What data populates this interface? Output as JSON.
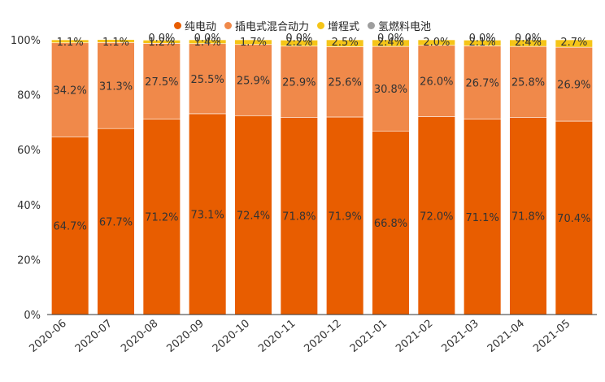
{
  "chart_data": {
    "type": "bar",
    "stacked": true,
    "categories": [
      "2020-06",
      "2020-07",
      "2020-08",
      "2020-09",
      "2020-10",
      "2020-11",
      "2020-12",
      "2021-01",
      "2021-02",
      "2021-03",
      "2021-04",
      "2021-05"
    ],
    "series": [
      {
        "name": "纯电动",
        "color": "#e85d00",
        "values": [
          64.7,
          67.7,
          71.2,
          73.1,
          72.4,
          71.8,
          71.9,
          66.8,
          72.0,
          71.1,
          71.8,
          70.4
        ]
      },
      {
        "name": "插电式混合动力",
        "color": "#f0894a",
        "values": [
          34.2,
          31.3,
          27.5,
          25.5,
          25.9,
          25.9,
          25.6,
          30.8,
          26.0,
          26.7,
          25.8,
          26.9
        ]
      },
      {
        "name": "增程式",
        "color": "#f5c518",
        "values": [
          1.1,
          1.1,
          1.2,
          1.4,
          1.7,
          2.2,
          2.5,
          2.4,
          2.0,
          2.1,
          2.4,
          2.7
        ]
      },
      {
        "name": "氢燃料电池",
        "color": "#9e9e9e",
        "values": [
          0.0,
          0.0,
          0.0,
          0.0,
          0.0,
          0.0,
          0.0,
          0.0,
          0.0,
          0.0,
          0.0,
          0.0
        ]
      }
    ],
    "hidden_zero_labels": [
      false,
      false,
      true,
      true,
      false,
      true,
      false,
      true,
      false,
      true,
      true,
      false
    ],
    "yticks": [
      "0%",
      "20%",
      "40%",
      "60%",
      "80%",
      "100%"
    ],
    "ylim": [
      0,
      100
    ],
    "legend_position": "top-center",
    "grid": false
  }
}
